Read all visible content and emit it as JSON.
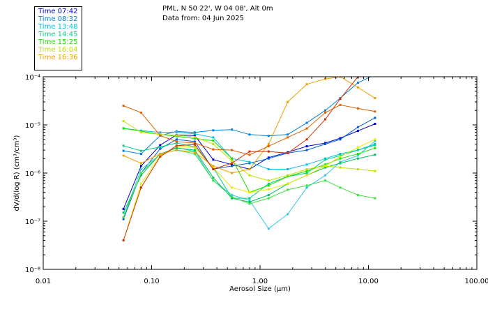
{
  "header": {
    "title": "PML, N 50 22', W 04 08', Alt 0m",
    "subtitle": "Data from: 04 Jun 2025"
  },
  "legend": [
    {
      "label": "Time 07:42",
      "color": "#0000cc"
    },
    {
      "label": "Time 08:32",
      "color": "#0080e0"
    },
    {
      "label": "Time 13:48",
      "color": "#00c0e0"
    },
    {
      "label": "Time 14:45",
      "color": "#00d080"
    },
    {
      "label": "Time 15:25",
      "color": "#20e000"
    },
    {
      "label": "Time 16:04",
      "color": "#c0e000"
    },
    {
      "label": "Time 16:36",
      "color": "#f0a000"
    }
  ],
  "chart_data": {
    "type": "line",
    "title": "PML, N 50 22', W 04 08', Alt 0m",
    "subtitle": "Data from: 04 Jun 2025",
    "xlabel": "Aerosol Size (µm)",
    "ylabel": "dV/d(log R) (cm³/cm³)",
    "xscale": "log",
    "yscale": "log",
    "xlim": [
      0.01,
      100
    ],
    "ylim": [
      1e-08,
      0.0001
    ],
    "xticks": [
      0.01,
      0.1,
      1,
      10,
      100
    ],
    "xtick_labels": [
      "0.01",
      "0.10",
      "1.00",
      "10.00",
      "100.00"
    ],
    "yticks": [
      1e-08,
      1e-07,
      1e-06,
      1e-05,
      0.0001
    ],
    "ytick_labels": [
      "10⁻⁸",
      "10⁻⁷",
      "10⁻⁶",
      "10⁻⁵",
      "10⁻⁴"
    ],
    "legend_position": "top-left, outside plot",
    "x": [
      0.055,
      0.08,
      0.12,
      0.17,
      0.25,
      0.37,
      0.55,
      0.8,
      1.2,
      1.8,
      2.7,
      4.0,
      5.5,
      8.0,
      11.5
    ],
    "series": [
      {
        "name": "Time 07:42",
        "color": "#0000cc",
        "values": [
          1.8e-07,
          1.4e-06,
          3.8e-06,
          6.2e-06,
          6e-06,
          1.9e-06,
          1.5e-06,
          1.2e-06,
          2.1e-06,
          2.7e-06,
          3.6e-06,
          4.2e-06,
          5.3e-06,
          7.5e-06,
          1.05e-05
        ]
      },
      {
        "name": "Time 08:32",
        "color": "#0080e0",
        "values": [
          2.9e-06,
          2.5e-06,
          6e-06,
          7.3e-06,
          7e-06,
          7.7e-06,
          8e-06,
          6.3e-06,
          5.9e-06,
          6.3e-06,
          1.1e-05,
          2e-05,
          3.6e-05,
          7.5e-05,
          0.00011
        ]
      },
      {
        "name": "Time 08:32",
        "color": "#0060d0",
        "values": [
          1.1e-07,
          1e-06,
          3.2e-06,
          5e-06,
          4.5e-06,
          1.2e-06,
          1.4e-06,
          1.6e-06,
          2e-06,
          2.6e-06,
          3e-06,
          4e-06,
          5e-06,
          9e-06,
          1.4e-05
        ]
      },
      {
        "name": "Time 13:48",
        "color": "#00c0e0",
        "values": [
          8.5e-06,
          7.6e-06,
          7e-06,
          7.1e-06,
          6.5e-06,
          5.5e-06,
          2e-06,
          1.7e-06,
          1.2e-06,
          1.2e-06,
          1.5e-06,
          2e-06,
          2.5e-06,
          3e-06,
          4e-06
        ]
      },
      {
        "name": "Time 13:48",
        "color": "#30c8f0",
        "values": [
          1.2e-07,
          1.2e-06,
          2.4e-06,
          3.4e-06,
          2.8e-06,
          7e-07,
          3.5e-07,
          2.7e-07,
          7e-08,
          1.4e-07,
          5e-07,
          9e-07,
          1.7e-06,
          2.3e-06,
          4.6e-06
        ]
      },
      {
        "name": "Time 14:45",
        "color": "#00d080",
        "values": [
          3.7e-06,
          2.9e-06,
          3.5e-06,
          4.2e-06,
          3.5e-06,
          1.3e-06,
          3e-07,
          3e-07,
          6e-07,
          8.5e-07,
          1e-06,
          1.9e-06,
          2.3e-06,
          3e-06,
          3.8e-06
        ]
      },
      {
        "name": "Time 14:45",
        "color": "#00c060",
        "values": [
          1.5e-07,
          9e-07,
          2.5e-06,
          3.3e-06,
          3e-06,
          8e-07,
          3e-07,
          2.5e-07,
          3.5e-07,
          6e-07,
          9e-07,
          1.3e-06,
          1.6e-06,
          2e-06,
          2.4e-06
        ]
      },
      {
        "name": "Time 15:25",
        "color": "#20e000",
        "values": [
          8.5e-06,
          7.4e-06,
          6.3e-06,
          5.8e-06,
          5.2e-06,
          4.7e-06,
          2e-06,
          4e-07,
          5.5e-07,
          8.5e-07,
          1.1e-06,
          1.5e-06,
          2e-06,
          2.5e-06,
          3.3e-06
        ]
      },
      {
        "name": "Time 15:25",
        "color": "#40e040",
        "values": [
          1.2e-07,
          1e-06,
          2.5e-06,
          3e-06,
          2.5e-06,
          7e-07,
          3.2e-07,
          2.3e-07,
          3e-07,
          4.5e-07,
          5.5e-07,
          7e-07,
          5e-07,
          3.5e-07,
          3e-07
        ]
      },
      {
        "name": "Time 16:04",
        "color": "#c0e000",
        "values": [
          1.2e-05,
          7e-06,
          6.3e-06,
          6.1e-06,
          5.6e-06,
          4e-06,
          1.8e-06,
          9e-07,
          7e-07,
          9e-07,
          1.2e-06,
          1.4e-06,
          1.3e-06,
          1.2e-06,
          1.1e-06
        ]
      },
      {
        "name": "Time 16:04",
        "color": "#e8e800",
        "values": [
          4e-08,
          6e-07,
          2.3e-06,
          3.6e-06,
          3.4e-06,
          1.3e-06,
          5e-07,
          4e-07,
          4.6e-07,
          6e-07,
          9e-07,
          1.4e-06,
          2.2e-06,
          3.4e-06,
          5e-06
        ]
      },
      {
        "name": "Time 16:36",
        "color": "#f0a000",
        "values": [
          2.3e-06,
          1.6e-06,
          2.5e-06,
          3e-06,
          2.7e-06,
          1.4e-06,
          1e-06,
          1.2e-06,
          4e-06,
          3e-05,
          7e-05,
          9e-05,
          0.0001,
          6e-05,
          3.6e-05
        ]
      },
      {
        "name": "Time 16:36",
        "color": "#e06000",
        "values": [
          2.5e-05,
          1.8e-05,
          6e-06,
          4.5e-06,
          4.2e-06,
          3.1e-06,
          3e-06,
          2.4e-06,
          3.6e-06,
          5.5e-06,
          8.4e-06,
          1.8e-05,
          2.6e-05,
          2.2e-05,
          1.9e-05
        ]
      },
      {
        "name": "Time 16:36",
        "color": "#d03000",
        "values": [
          4e-08,
          5e-07,
          2.2e-06,
          3.7e-06,
          3.9e-06,
          1.2e-06,
          1.6e-06,
          2.8e-06,
          2.8e-06,
          2.6e-06,
          5e-06,
          1.3e-05,
          3.5e-05,
          0.0001,
          0.00012
        ]
      }
    ]
  }
}
